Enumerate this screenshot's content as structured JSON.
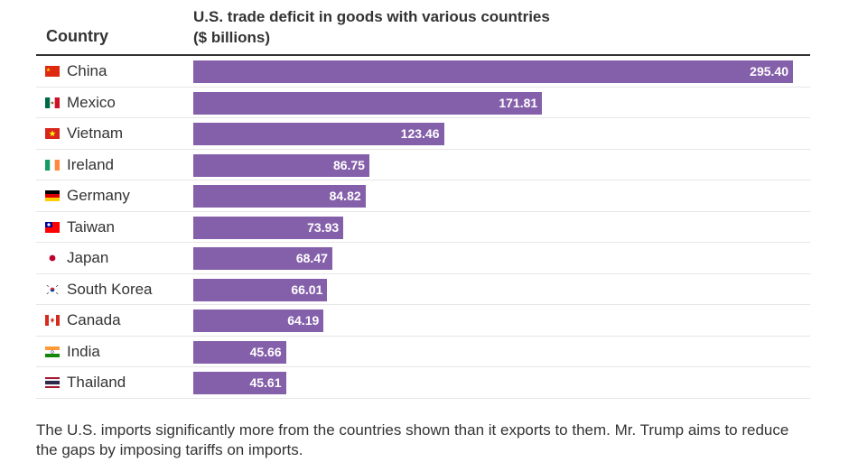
{
  "header": {
    "country_label": "Country",
    "title_line1": "U.S. trade deficit in goods with various countries",
    "title_line2": "($ billions)"
  },
  "chart_data": {
    "type": "bar",
    "orientation": "horizontal",
    "title": "U.S. trade deficit in goods with various countries ($ billions)",
    "categories": [
      "China",
      "Mexico",
      "Vietnam",
      "Ireland",
      "Germany",
      "Taiwan",
      "Japan",
      "South Korea",
      "Canada",
      "India",
      "Thailand"
    ],
    "values": [
      295.4,
      171.81,
      123.46,
      86.75,
      84.82,
      73.93,
      68.47,
      66.01,
      64.19,
      45.66,
      45.61
    ],
    "value_labels": [
      "295.40",
      "171.81",
      "123.46",
      "86.75",
      "84.82",
      "73.93",
      "68.47",
      "66.01",
      "64.19",
      "45.66",
      "45.61"
    ],
    "xlim": [
      0,
      295.4
    ],
    "bar_color": "#8560aa",
    "grid": false,
    "legend": "none"
  },
  "flags": [
    "china-flag-icon",
    "mexico-flag-icon",
    "vietnam-flag-icon",
    "ireland-flag-icon",
    "germany-flag-icon",
    "taiwan-flag-icon",
    "japan-flag-icon",
    "south-korea-flag-icon",
    "canada-flag-icon",
    "india-flag-icon",
    "thailand-flag-icon"
  ],
  "note": "The U.S. imports significantly more from the countries shown than it exports to them. Mr. Trump aims to reduce the gaps by imposing tariffs on imports."
}
